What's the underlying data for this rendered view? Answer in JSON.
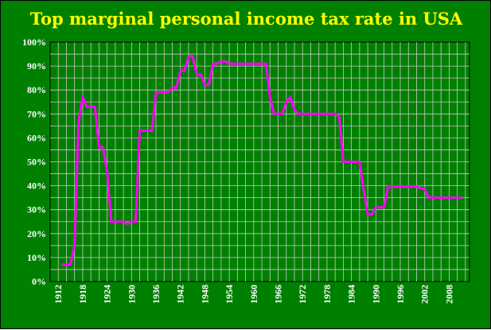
{
  "chart_data": {
    "type": "line",
    "title": "Top marginal personal income tax rate in USA",
    "xlabel": "",
    "ylabel": "",
    "xlim": [
      1910,
      2013
    ],
    "ylim": [
      0,
      100
    ],
    "grid": true,
    "legend": "none",
    "x_ticks": [
      "1912",
      "1918",
      "1924",
      "1930",
      "1936",
      "1942",
      "1948",
      "1954",
      "1960",
      "1966",
      "1972",
      "1978",
      "1984",
      "1990",
      "1996",
      "2002",
      "2008"
    ],
    "y_ticks": [
      "0%",
      "10%",
      "20%",
      "30%",
      "40%",
      "50%",
      "60%",
      "70%",
      "80%",
      "90%",
      "100%"
    ],
    "series": [
      {
        "points": [
          [
            1913,
            7
          ],
          [
            1914,
            7
          ],
          [
            1915,
            7
          ],
          [
            1916,
            15
          ],
          [
            1917,
            67
          ],
          [
            1918,
            77
          ],
          [
            1919,
            73
          ],
          [
            1920,
            73
          ],
          [
            1921,
            73
          ],
          [
            1922,
            56
          ],
          [
            1923,
            56
          ],
          [
            1924,
            46
          ],
          [
            1925,
            25
          ],
          [
            1926,
            25
          ],
          [
            1927,
            25
          ],
          [
            1928,
            25
          ],
          [
            1929,
            24
          ],
          [
            1930,
            25
          ],
          [
            1931,
            25
          ],
          [
            1932,
            63
          ],
          [
            1933,
            63
          ],
          [
            1934,
            63
          ],
          [
            1935,
            63
          ],
          [
            1936,
            79
          ],
          [
            1937,
            79
          ],
          [
            1938,
            79
          ],
          [
            1939,
            79
          ],
          [
            1940,
            81
          ],
          [
            1941,
            81
          ],
          [
            1942,
            88
          ],
          [
            1943,
            88
          ],
          [
            1944,
            94
          ],
          [
            1945,
            94
          ],
          [
            1946,
            86.45
          ],
          [
            1947,
            86.45
          ],
          [
            1948,
            82.13
          ],
          [
            1949,
            82.13
          ],
          [
            1950,
            91
          ],
          [
            1951,
            91
          ],
          [
            1952,
            92
          ],
          [
            1953,
            92
          ],
          [
            1954,
            91
          ],
          [
            1955,
            91
          ],
          [
            1956,
            91
          ],
          [
            1957,
            91
          ],
          [
            1958,
            91
          ],
          [
            1959,
            91
          ],
          [
            1960,
            91
          ],
          [
            1961,
            91
          ],
          [
            1962,
            91
          ],
          [
            1963,
            91
          ],
          [
            1964,
            77
          ],
          [
            1965,
            70
          ],
          [
            1966,
            70
          ],
          [
            1967,
            70
          ],
          [
            1968,
            75.25
          ],
          [
            1969,
            77
          ],
          [
            1970,
            71.75
          ],
          [
            1971,
            70
          ],
          [
            1972,
            70
          ],
          [
            1973,
            70
          ],
          [
            1974,
            70
          ],
          [
            1975,
            70
          ],
          [
            1976,
            70
          ],
          [
            1977,
            70
          ],
          [
            1978,
            70
          ],
          [
            1979,
            70
          ],
          [
            1980,
            70
          ],
          [
            1981,
            69.13
          ],
          [
            1982,
            50
          ],
          [
            1983,
            50
          ],
          [
            1984,
            50
          ],
          [
            1985,
            50
          ],
          [
            1986,
            50
          ],
          [
            1987,
            38.5
          ],
          [
            1988,
            28
          ],
          [
            1989,
            28
          ],
          [
            1990,
            31
          ],
          [
            1991,
            31
          ],
          [
            1992,
            31
          ],
          [
            1993,
            39.6
          ],
          [
            1994,
            39.6
          ],
          [
            1995,
            39.6
          ],
          [
            1996,
            39.6
          ],
          [
            1997,
            39.6
          ],
          [
            1998,
            39.6
          ],
          [
            1999,
            39.6
          ],
          [
            2000,
            39.6
          ],
          [
            2001,
            39.1
          ],
          [
            2002,
            38.6
          ],
          [
            2003,
            35
          ],
          [
            2004,
            35
          ],
          [
            2005,
            35
          ],
          [
            2006,
            35
          ],
          [
            2007,
            35
          ],
          [
            2008,
            35
          ],
          [
            2009,
            35
          ],
          [
            2010,
            35
          ],
          [
            2011,
            35
          ]
        ]
      }
    ]
  },
  "colors": {
    "background": "#008000",
    "plot_border": "#000000",
    "grid": "#c8c8c8",
    "line": "#ff00ff",
    "title": "#ffff00",
    "tick_text": "#ffffff"
  }
}
